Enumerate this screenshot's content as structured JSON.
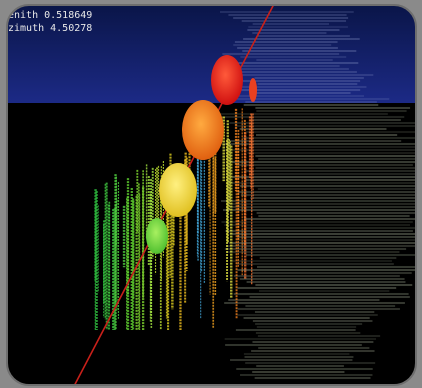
{
  "hud": {
    "zenith": "enith 0.518649",
    "azimuth": "zimuth 4.50278"
  }
}
